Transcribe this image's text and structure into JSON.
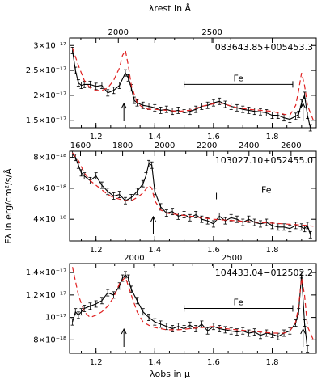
{
  "labels": {
    "top_axis": "λrest in Å",
    "bottom_axis": "λobs in μ",
    "y_axis": "Fλ in erg/cm²/s/Å",
    "fe": "Fe"
  },
  "chart_data": [
    {
      "type": "line",
      "object": "083643.85+005453.3",
      "xlim": [
        1.11,
        1.95
      ],
      "ylim": [
        1.35e-17,
        3.15e-17
      ],
      "y_ticks": [
        1.5e-17,
        2e-17,
        2.5e-17,
        3e-17
      ],
      "y_tick_labels": [
        "1.5×10⁻¹⁷",
        "2×10⁻¹⁷",
        "2.5×10⁻¹⁷",
        "3×10⁻¹⁷"
      ],
      "x_ticks": [
        1.2,
        1.4,
        1.6,
        1.8
      ],
      "x_tick_labels": [
        "1.2",
        "1.4",
        "1.6",
        "1.8"
      ],
      "rest_ticks": [
        2000,
        2500
      ],
      "rest_tick_labels": [
        "2000",
        "2500"
      ],
      "rest_minor": [
        1800,
        1900,
        2100,
        2200,
        2300,
        2400,
        2600
      ],
      "rest_divisor": 0.000638,
      "fe_range": [
        1.5,
        1.87
      ],
      "fe_y": 2.22e-17,
      "arrows": [
        1.295,
        1.905
      ],
      "series": [
        {
          "style": "observed",
          "x": [
            1.12,
            1.13,
            1.14,
            1.15,
            1.16,
            1.18,
            1.2,
            1.22,
            1.24,
            1.26,
            1.28,
            1.3,
            1.31,
            1.32,
            1.33,
            1.34,
            1.36,
            1.38,
            1.4,
            1.42,
            1.44,
            1.46,
            1.48,
            1.5,
            1.52,
            1.54,
            1.56,
            1.58,
            1.6,
            1.62,
            1.64,
            1.66,
            1.68,
            1.7,
            1.72,
            1.74,
            1.76,
            1.78,
            1.8,
            1.82,
            1.84,
            1.86,
            1.88,
            1.89,
            1.9,
            1.91,
            1.92,
            1.93
          ],
          "y": [
            2.9e-17,
            2.5e-17,
            2.25e-17,
            2.2e-17,
            2.22e-17,
            2.22e-17,
            2.18e-17,
            2.2e-17,
            2.05e-17,
            2.1e-17,
            2.2e-17,
            2.45e-17,
            2.35e-17,
            2.15e-17,
            1.9e-17,
            1.85e-17,
            1.8e-17,
            1.78e-17,
            1.75e-17,
            1.7e-17,
            1.72e-17,
            1.68e-17,
            1.7e-17,
            1.65e-17,
            1.68e-17,
            1.72e-17,
            1.78e-17,
            1.8e-17,
            1.85e-17,
            1.88e-17,
            1.82e-17,
            1.78e-17,
            1.75e-17,
            1.72e-17,
            1.7e-17,
            1.68e-17,
            1.67e-17,
            1.65e-17,
            1.6e-17,
            1.6e-17,
            1.55e-17,
            1.52e-17,
            1.58e-17,
            1.62e-17,
            1.85e-17,
            2e-17,
            1.6e-17,
            1.2e-17
          ]
        },
        {
          "style": "model",
          "x": [
            1.12,
            1.14,
            1.16,
            1.18,
            1.2,
            1.22,
            1.24,
            1.26,
            1.28,
            1.29,
            1.3,
            1.31,
            1.32,
            1.34,
            1.36,
            1.38,
            1.4,
            1.44,
            1.48,
            1.52,
            1.56,
            1.6,
            1.62,
            1.64,
            1.68,
            1.72,
            1.76,
            1.8,
            1.84,
            1.86,
            1.88,
            1.89,
            1.9,
            1.91,
            1.92,
            1.94
          ],
          "y": [
            2.95e-17,
            2.6e-17,
            2.3e-17,
            2.15e-17,
            2.1e-17,
            2.1e-17,
            2.15e-17,
            2.3e-17,
            2.55e-17,
            2.8e-17,
            2.9e-17,
            2.6e-17,
            2.2e-17,
            1.85e-17,
            1.75e-17,
            1.72e-17,
            1.72e-17,
            1.7e-17,
            1.68e-17,
            1.7e-17,
            1.78e-17,
            1.83e-17,
            1.85e-17,
            1.82e-17,
            1.75e-17,
            1.72e-17,
            1.7e-17,
            1.68e-17,
            1.62e-17,
            1.6e-17,
            1.8e-17,
            2.1e-17,
            2.45e-17,
            2.2e-17,
            1.8e-17,
            1.5e-17
          ]
        }
      ]
    },
    {
      "type": "line",
      "object": "103027.10+052455.0",
      "xlim": [
        1.11,
        1.95
      ],
      "ylim": [
        2.6e-18,
        8.4e-18
      ],
      "y_ticks": [
        4e-18,
        6e-18,
        8e-18
      ],
      "y_tick_labels": [
        "4×10⁻¹⁸",
        "6×10⁻¹⁸",
        "8×10⁻¹⁸"
      ],
      "x_ticks": [
        1.2,
        1.4,
        1.6,
        1.8
      ],
      "x_tick_labels": [
        "1.2",
        "1.4",
        "1.6",
        "1.8"
      ],
      "rest_ticks": [
        1600,
        1800,
        2000,
        2200,
        2400,
        2600
      ],
      "rest_tick_labels": [
        "1600",
        "1800",
        "2000",
        "2200",
        "2400",
        "2600"
      ],
      "rest_minor": [
        1700,
        1900,
        2100,
        2300,
        2500
      ],
      "rest_divisor": 0.000717,
      "fe_range": [
        1.61,
        1.95
      ],
      "fe_y": 5.5e-18,
      "arrows": [
        1.395
      ],
      "series": [
        {
          "style": "observed",
          "x": [
            1.12,
            1.13,
            1.14,
            1.15,
            1.16,
            1.18,
            1.2,
            1.22,
            1.24,
            1.26,
            1.28,
            1.3,
            1.32,
            1.34,
            1.36,
            1.37,
            1.38,
            1.39,
            1.4,
            1.42,
            1.44,
            1.46,
            1.48,
            1.5,
            1.52,
            1.54,
            1.56,
            1.58,
            1.6,
            1.62,
            1.64,
            1.66,
            1.68,
            1.7,
            1.72,
            1.74,
            1.76,
            1.78,
            1.8,
            1.82,
            1.84,
            1.86,
            1.88,
            1.9,
            1.91,
            1.92,
            1.93
          ],
          "y": [
            8.2e-18,
            8e-18,
            7.5e-18,
            7e-18,
            6.8e-18,
            6.5e-18,
            6.8e-18,
            6.2e-18,
            5.8e-18,
            5.5e-18,
            5.6e-18,
            5.2e-18,
            5.4e-18,
            5.8e-18,
            6.3e-18,
            6.8e-18,
            7.6e-18,
            7.5e-18,
            5.8e-18,
            4.8e-18,
            4.4e-18,
            4.5e-18,
            4.2e-18,
            4.3e-18,
            4.1e-18,
            4.3e-18,
            4e-18,
            3.9e-18,
            3.7e-18,
            4.2e-18,
            3.9e-18,
            4.1e-18,
            4e-18,
            3.8e-18,
            4e-18,
            3.8e-18,
            3.7e-18,
            3.8e-18,
            3.6e-18,
            3.5e-18,
            3.5e-18,
            3.4e-18,
            3.6e-18,
            3.5e-18,
            3.4e-18,
            3.6e-18,
            3e-18
          ]
        },
        {
          "style": "model",
          "x": [
            1.12,
            1.14,
            1.16,
            1.18,
            1.2,
            1.22,
            1.24,
            1.26,
            1.28,
            1.3,
            1.32,
            1.34,
            1.36,
            1.38,
            1.39,
            1.4,
            1.42,
            1.44,
            1.48,
            1.52,
            1.56,
            1.6,
            1.64,
            1.68,
            1.72,
            1.76,
            1.8,
            1.84,
            1.88,
            1.92,
            1.94
          ],
          "y": [
            8.3e-18,
            7.8e-18,
            7e-18,
            6.5e-18,
            6.2e-18,
            5.9e-18,
            5.6e-18,
            5.4e-18,
            5.3e-18,
            5.2e-18,
            5.2e-18,
            5.4e-18,
            5.7e-18,
            6.2e-18,
            6e-18,
            5.2e-18,
            4.6e-18,
            4.4e-18,
            4.3e-18,
            4.2e-18,
            4.1e-18,
            4e-18,
            3.95e-18,
            3.9e-18,
            3.85e-18,
            3.8e-18,
            3.75e-18,
            3.7e-18,
            3.65e-18,
            3.6e-18,
            3.55e-18
          ]
        }
      ]
    },
    {
      "type": "line",
      "object": "104433.04−012502.2",
      "xlim": [
        1.11,
        1.95
      ],
      "ylim": [
        6.8e-18,
        1.48e-17
      ],
      "y_ticks": [
        8e-18,
        1e-17,
        1.2e-17,
        1.4e-17
      ],
      "y_tick_labels": [
        "8×10⁻¹⁸",
        "10⁻¹⁷",
        "1.2×10⁻¹⁷",
        "1.4×10⁻¹⁷"
      ],
      "x_ticks": [
        1.2,
        1.4,
        1.6,
        1.8
      ],
      "x_tick_labels": [
        "1.2",
        "1.4",
        "1.6",
        "1.8"
      ],
      "rest_ticks": [
        2000,
        2500
      ],
      "rest_tick_labels": [
        "2000",
        "2500"
      ],
      "rest_minor": [
        1800,
        1900,
        2100,
        2200,
        2300,
        2400,
        2600
      ],
      "rest_divisor": 0.000665,
      "fe_range": [
        1.5,
        1.87
      ],
      "fe_y": 1.08e-17,
      "arrows": [
        1.295,
        1.905
      ],
      "series": [
        {
          "style": "observed",
          "x": [
            1.12,
            1.13,
            1.14,
            1.15,
            1.16,
            1.18,
            1.2,
            1.22,
            1.24,
            1.26,
            1.28,
            1.29,
            1.3,
            1.31,
            1.32,
            1.34,
            1.36,
            1.38,
            1.4,
            1.42,
            1.44,
            1.46,
            1.48,
            1.5,
            1.52,
            1.54,
            1.56,
            1.58,
            1.6,
            1.62,
            1.64,
            1.66,
            1.68,
            1.7,
            1.72,
            1.74,
            1.76,
            1.78,
            1.8,
            1.82,
            1.84,
            1.86,
            1.88,
            1.89,
            1.9,
            1.91,
            1.92
          ],
          "y": [
            9.6e-18,
            1.05e-17,
            1.02e-17,
            1.05e-17,
            1.08e-17,
            1.1e-17,
            1.12e-17,
            1.15e-17,
            1.22e-17,
            1.2e-17,
            1.28e-17,
            1.35e-17,
            1.38e-17,
            1.35e-17,
            1.25e-17,
            1.15e-17,
            1.05e-17,
            1e-17,
            9.6e-18,
            9.4e-18,
            9.2e-18,
            9e-18,
            9.2e-18,
            9e-18,
            9.3e-18,
            9e-18,
            9.4e-18,
            8.8e-18,
            9.2e-18,
            9e-18,
            8.9e-18,
            8.8e-18,
            8.7e-18,
            8.8e-18,
            8.6e-18,
            8.7e-18,
            8.4e-18,
            8.6e-18,
            8.5e-18,
            8.3e-18,
            8.6e-18,
            8.8e-18,
            9.5e-18,
            1.05e-17,
            1.38e-17,
            9.5e-18,
            7.2e-18
          ]
        },
        {
          "style": "model",
          "x": [
            1.12,
            1.14,
            1.16,
            1.18,
            1.2,
            1.22,
            1.24,
            1.26,
            1.28,
            1.3,
            1.32,
            1.34,
            1.36,
            1.38,
            1.4,
            1.44,
            1.48,
            1.52,
            1.56,
            1.6,
            1.64,
            1.68,
            1.72,
            1.76,
            1.8,
            1.84,
            1.86,
            1.88,
            1.89,
            1.9,
            1.91,
            1.92,
            1.94
          ],
          "y": [
            1.45e-17,
            1.2e-17,
            1.05e-17,
            1e-17,
            1.02e-17,
            1.05e-17,
            1.1e-17,
            1.18e-17,
            1.3e-17,
            1.36e-17,
            1.2e-17,
            1.05e-17,
            9.6e-18,
            9.3e-18,
            9.1e-18,
            8.9e-18,
            8.9e-18,
            9e-18,
            9.1e-18,
            9.2e-18,
            9e-18,
            8.9e-18,
            8.8e-18,
            8.7e-18,
            8.6e-18,
            8.6e-18,
            8.8e-18,
            9.6e-18,
            1.1e-17,
            1.35e-17,
            1.2e-17,
            9.2e-18,
            8e-18
          ]
        }
      ]
    }
  ]
}
